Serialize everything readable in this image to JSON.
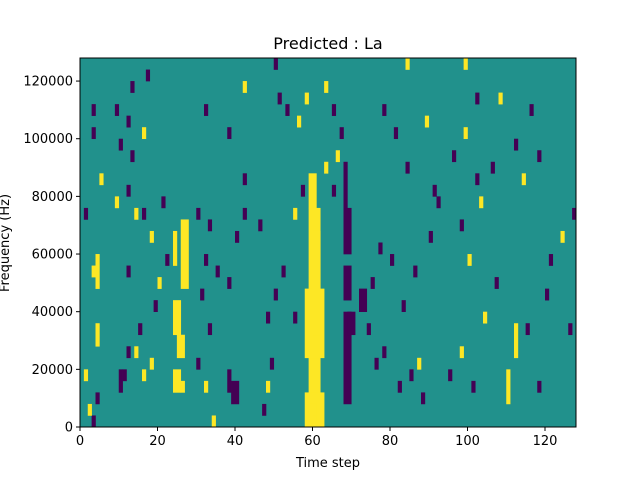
{
  "chart_data": {
    "type": "heatmap",
    "title": "Predicted : La",
    "xlabel": "Time step",
    "ylabel": "Frequency (Hz)",
    "xlim": [
      0,
      128
    ],
    "ylim": [
      0,
      128000
    ],
    "n_rows": 32,
    "row_height_hz": 4000,
    "xticks": [
      0,
      20,
      40,
      60,
      80,
      100,
      120
    ],
    "yticks": [
      0,
      20000,
      40000,
      60000,
      80000,
      100000,
      120000
    ],
    "colors": {
      "low": "#440154",
      "mid": "#21918c",
      "high": "#fde725"
    },
    "background_value": "mid",
    "cells_note": "rectangles [t_start, t_end_exclusive, row_start, row_end_exclusive, value]",
    "cells": [
      [
        58,
        63,
        0,
        3,
        "high"
      ],
      [
        59,
        62,
        3,
        19,
        "high"
      ],
      [
        58,
        63,
        6,
        12,
        "high"
      ],
      [
        59,
        61,
        19,
        22,
        "high"
      ],
      [
        60,
        62,
        8,
        17,
        "high"
      ],
      [
        68,
        70,
        2,
        10,
        "low"
      ],
      [
        68,
        70,
        11,
        14,
        "low"
      ],
      [
        69,
        71,
        8,
        10,
        "low"
      ],
      [
        68,
        70,
        15,
        19,
        "low"
      ],
      [
        68,
        69,
        19,
        23,
        "low"
      ],
      [
        72,
        74,
        10,
        12,
        "low"
      ],
      [
        24,
        26,
        3,
        5,
        "high"
      ],
      [
        25,
        27,
        6,
        8,
        "high"
      ],
      [
        24,
        26,
        8,
        11,
        "high"
      ],
      [
        26,
        28,
        12,
        18,
        "high"
      ],
      [
        24,
        25,
        14,
        17,
        "high"
      ],
      [
        26,
        27,
        3,
        4,
        "high"
      ],
      [
        39,
        41,
        2,
        4,
        "low"
      ],
      [
        38,
        39,
        3,
        5,
        "low"
      ],
      [
        59,
        61,
        1,
        2,
        "high"
      ],
      [
        60,
        61,
        0,
        1,
        "high"
      ],
      [
        3,
        4,
        0,
        1,
        "low"
      ],
      [
        2,
        3,
        1,
        2,
        "high"
      ],
      [
        4,
        5,
        2,
        3,
        "low"
      ],
      [
        1,
        2,
        4,
        5,
        "high"
      ],
      [
        4,
        5,
        7,
        9,
        "high"
      ],
      [
        3,
        4,
        13,
        14,
        "high"
      ],
      [
        4,
        5,
        12,
        15,
        "high"
      ],
      [
        5,
        6,
        21,
        22,
        "high"
      ],
      [
        1,
        2,
        18,
        19,
        "low"
      ],
      [
        3,
        4,
        27,
        28,
        "low"
      ],
      [
        3,
        4,
        25,
        26,
        "low"
      ],
      [
        10,
        11,
        3,
        5,
        "low"
      ],
      [
        11,
        12,
        4,
        5,
        "low"
      ],
      [
        12,
        13,
        6,
        7,
        "low"
      ],
      [
        14,
        15,
        6,
        7,
        "high"
      ],
      [
        16,
        17,
        4,
        5,
        "high"
      ],
      [
        18,
        19,
        5,
        6,
        "high"
      ],
      [
        13,
        14,
        29,
        30,
        "low"
      ],
      [
        17,
        18,
        30,
        31,
        "low"
      ],
      [
        12,
        13,
        26,
        27,
        "low"
      ],
      [
        9,
        10,
        27,
        28,
        "low"
      ],
      [
        16,
        17,
        25,
        26,
        "high"
      ],
      [
        10,
        11,
        24,
        25,
        "low"
      ],
      [
        14,
        15,
        18,
        19,
        "high"
      ],
      [
        13,
        14,
        23,
        24,
        "low"
      ],
      [
        12,
        13,
        20,
        21,
        "low"
      ],
      [
        9,
        10,
        19,
        20,
        "high"
      ],
      [
        16,
        17,
        18,
        19,
        "low"
      ],
      [
        21,
        22,
        19,
        20,
        "low"
      ],
      [
        20,
        21,
        12,
        13,
        "high"
      ],
      [
        22,
        23,
        14,
        15,
        "low"
      ],
      [
        18,
        19,
        16,
        17,
        "high"
      ],
      [
        12,
        13,
        13,
        14,
        "low"
      ],
      [
        19,
        20,
        10,
        11,
        "low"
      ],
      [
        15,
        16,
        8,
        9,
        "low"
      ],
      [
        30,
        31,
        5,
        6,
        "low"
      ],
      [
        32,
        33,
        3,
        4,
        "high"
      ],
      [
        34,
        35,
        0,
        1,
        "high"
      ],
      [
        33,
        34,
        8,
        9,
        "low"
      ],
      [
        31,
        32,
        11,
        12,
        "low"
      ],
      [
        32,
        33,
        14,
        15,
        "low"
      ],
      [
        30,
        31,
        18,
        19,
        "low"
      ],
      [
        33,
        34,
        17,
        18,
        "low"
      ],
      [
        35,
        36,
        13,
        14,
        "low"
      ],
      [
        38,
        39,
        12,
        13,
        "low"
      ],
      [
        40,
        41,
        16,
        17,
        "low"
      ],
      [
        42,
        43,
        18,
        19,
        "low"
      ],
      [
        46,
        47,
        17,
        18,
        "low"
      ],
      [
        42,
        43,
        21,
        22,
        "low"
      ],
      [
        38,
        39,
        25,
        26,
        "low"
      ],
      [
        32,
        33,
        27,
        28,
        "low"
      ],
      [
        42,
        43,
        29,
        30,
        "high"
      ],
      [
        50,
        51,
        31,
        32,
        "low"
      ],
      [
        48,
        49,
        9,
        10,
        "low"
      ],
      [
        50,
        51,
        11,
        12,
        "low"
      ],
      [
        52,
        53,
        13,
        14,
        "low"
      ],
      [
        55,
        56,
        9,
        10,
        "low"
      ],
      [
        49,
        50,
        5,
        6,
        "low"
      ],
      [
        48,
        49,
        3,
        4,
        "high"
      ],
      [
        47,
        48,
        1,
        2,
        "low"
      ],
      [
        55,
        56,
        18,
        19,
        "high"
      ],
      [
        57,
        58,
        20,
        21,
        "low"
      ],
      [
        56,
        57,
        26,
        27,
        "high"
      ],
      [
        58,
        59,
        28,
        29,
        "high"
      ],
      [
        53,
        54,
        27,
        28,
        "low"
      ],
      [
        51,
        52,
        28,
        29,
        "low"
      ],
      [
        65,
        66,
        20,
        21,
        "low"
      ],
      [
        63,
        64,
        22,
        23,
        "high"
      ],
      [
        66,
        67,
        23,
        24,
        "high"
      ],
      [
        67,
        68,
        25,
        26,
        "low"
      ],
      [
        65,
        66,
        27,
        28,
        "low"
      ],
      [
        63,
        64,
        29,
        30,
        "high"
      ],
      [
        74,
        75,
        8,
        9,
        "low"
      ],
      [
        76,
        77,
        5,
        6,
        "low"
      ],
      [
        78,
        79,
        6,
        7,
        "low"
      ],
      [
        75,
        76,
        12,
        13,
        "low"
      ],
      [
        77,
        78,
        15,
        16,
        "low"
      ],
      [
        80,
        81,
        14,
        15,
        "low"
      ],
      [
        82,
        83,
        3,
        4,
        "low"
      ],
      [
        85,
        86,
        4,
        5,
        "low"
      ],
      [
        88,
        89,
        2,
        3,
        "low"
      ],
      [
        87,
        88,
        5,
        6,
        "high"
      ],
      [
        83,
        84,
        10,
        11,
        "low"
      ],
      [
        86,
        87,
        13,
        14,
        "low"
      ],
      [
        90,
        91,
        16,
        17,
        "low"
      ],
      [
        92,
        93,
        19,
        20,
        "low"
      ],
      [
        84,
        85,
        22,
        23,
        "low"
      ],
      [
        81,
        82,
        25,
        26,
        "low"
      ],
      [
        78,
        79,
        27,
        28,
        "low"
      ],
      [
        84,
        85,
        31,
        32,
        "high"
      ],
      [
        95,
        96,
        4,
        5,
        "low"
      ],
      [
        98,
        99,
        6,
        7,
        "high"
      ],
      [
        101,
        102,
        3,
        4,
        "low"
      ],
      [
        104,
        105,
        9,
        10,
        "high"
      ],
      [
        107,
        108,
        12,
        13,
        "low"
      ],
      [
        100,
        101,
        14,
        15,
        "high"
      ],
      [
        98,
        99,
        17,
        18,
        "low"
      ],
      [
        103,
        104,
        19,
        20,
        "high"
      ],
      [
        106,
        107,
        22,
        23,
        "low"
      ],
      [
        99,
        100,
        25,
        26,
        "high"
      ],
      [
        102,
        103,
        28,
        29,
        "low"
      ],
      [
        99,
        100,
        31,
        32,
        "high"
      ],
      [
        110,
        111,
        2,
        5,
        "high"
      ],
      [
        112,
        113,
        6,
        9,
        "high"
      ],
      [
        115,
        116,
        8,
        9,
        "low"
      ],
      [
        118,
        119,
        3,
        4,
        "low"
      ],
      [
        120,
        121,
        11,
        12,
        "low"
      ],
      [
        121,
        122,
        14,
        15,
        "low"
      ],
      [
        124,
        125,
        16,
        17,
        "high"
      ],
      [
        126,
        127,
        8,
        9,
        "low"
      ],
      [
        127,
        128,
        18,
        19,
        "low"
      ],
      [
        114,
        115,
        21,
        22,
        "high"
      ],
      [
        118,
        119,
        23,
        24,
        "low"
      ],
      [
        116,
        117,
        27,
        28,
        "low"
      ],
      [
        112,
        113,
        24,
        25,
        "low"
      ],
      [
        108,
        109,
        28,
        29,
        "high"
      ],
      [
        102,
        103,
        21,
        22,
        "low"
      ],
      [
        96,
        97,
        23,
        24,
        "low"
      ],
      [
        91,
        92,
        20,
        21,
        "low"
      ],
      [
        89,
        90,
        26,
        27,
        "high"
      ]
    ]
  }
}
